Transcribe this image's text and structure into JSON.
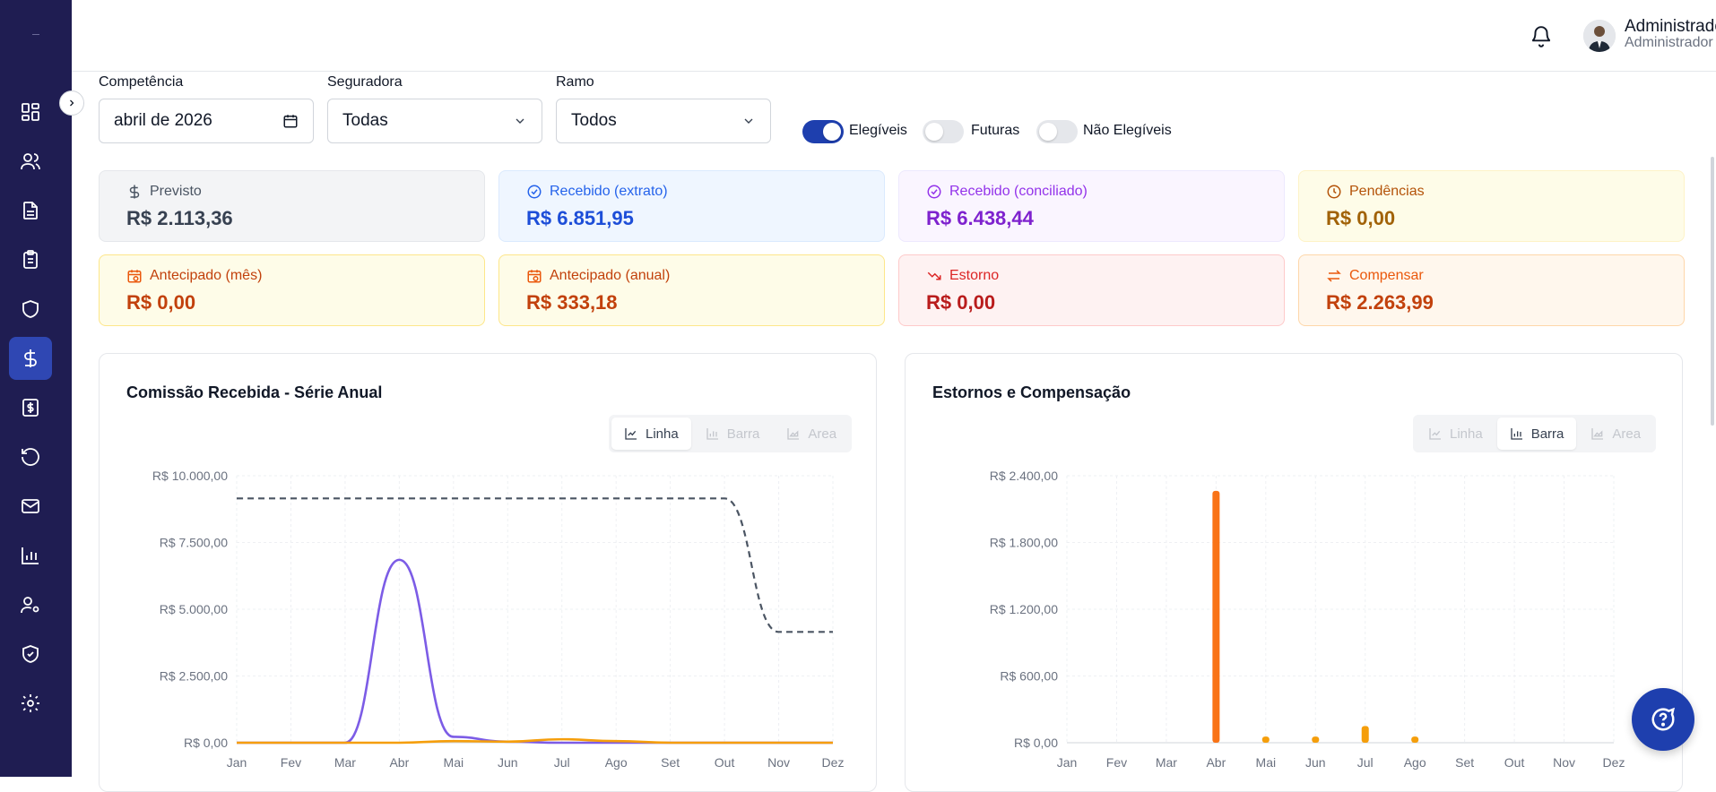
{
  "header": {
    "user_name": "Administrador",
    "user_role": "Administrador"
  },
  "filters": {
    "competencia_label": "Competência",
    "competencia_value": "abril de 2026",
    "seguradora_label": "Seguradora",
    "seguradora_value": "Todas",
    "ramo_label": "Ramo",
    "ramo_value": "Todos"
  },
  "toggles": [
    {
      "label": "Elegíveis",
      "on": true
    },
    {
      "label": "Futuras",
      "on": false
    },
    {
      "label": "Não Elegíveis",
      "on": false
    }
  ],
  "cards": [
    {
      "label": "Previsto",
      "value": "R$ 2.113,36",
      "icon": "dollar-icon"
    },
    {
      "label": "Recebido (extrato)",
      "value": "R$ 6.851,95",
      "icon": "check-circle-icon"
    },
    {
      "label": "Recebido (conciliado)",
      "value": "R$ 6.438,44",
      "icon": "check-circle-icon"
    },
    {
      "label": "Pendências",
      "value": "R$ 0,00",
      "icon": "clock-icon"
    },
    {
      "label": "Antecipado (mês)",
      "value": "R$ 0,00",
      "icon": "calendar-clock-icon"
    },
    {
      "label": "Antecipado (anual)",
      "value": "R$ 333,18",
      "icon": "calendar-clock-icon"
    },
    {
      "label": "Estorno",
      "value": "R$ 0,00",
      "icon": "trending-down-icon"
    },
    {
      "label": "Compensar",
      "value": "R$ 2.263,99",
      "icon": "arrows-swap-icon"
    }
  ],
  "colors": {
    "sidebar_bg": "#1f1d52",
    "active_nav": "#2f47b3",
    "primary": "#1e3fae",
    "line_purple": "#7c5ce6",
    "line_orange": "#f59e0b",
    "bar_orange": "#f97316",
    "dashed": "#4b5563"
  },
  "chart_toggle": {
    "line": "Linha",
    "bar": "Barra",
    "area": "Area"
  },
  "chart_data": [
    {
      "type": "line",
      "title": "Comissão Recebida - Série Anual",
      "categories": [
        "Jan",
        "Fev",
        "Mar",
        "Abr",
        "Mai",
        "Jun",
        "Jul",
        "Ago",
        "Set",
        "Out",
        "Nov",
        "Dez"
      ],
      "yticks": [
        "R$ 0,00",
        "R$ 2.500,00",
        "R$ 5.000,00",
        "R$ 7.500,00",
        "R$ 10.000,00"
      ],
      "ylim": [
        0,
        10000
      ],
      "series": [
        {
          "values": [
            9150,
            9150,
            9150,
            9150,
            9150,
            9150,
            9150,
            9150,
            9150,
            9150,
            4150,
            4150
          ],
          "style": "dashed"
        },
        {
          "values": [
            0,
            0,
            0,
            6850,
            220,
            40,
            0,
            0,
            0,
            0,
            0,
            0
          ]
        },
        {
          "values": [
            0,
            0,
            0,
            0,
            60,
            40,
            130,
            60,
            0,
            0,
            0,
            0
          ]
        }
      ]
    },
    {
      "type": "bar",
      "title": "Estornos e Compensação",
      "categories": [
        "Jan",
        "Fev",
        "Mar",
        "Abr",
        "Mai",
        "Jun",
        "Jul",
        "Ago",
        "Set",
        "Out",
        "Nov",
        "Dez"
      ],
      "yticks": [
        "R$ 0,00",
        "R$ 600,00",
        "R$ 1.200,00",
        "R$ 1.800,00",
        "R$ 2.400,00"
      ],
      "ylim": [
        0,
        2400
      ],
      "series": [
        {
          "values": [
            0,
            0,
            0,
            2263.99,
            0,
            0,
            0,
            0,
            0,
            0,
            0,
            0
          ]
        },
        {
          "values": [
            0,
            0,
            0,
            0,
            55,
            55,
            150,
            55,
            0,
            0,
            0,
            0
          ]
        }
      ]
    }
  ]
}
